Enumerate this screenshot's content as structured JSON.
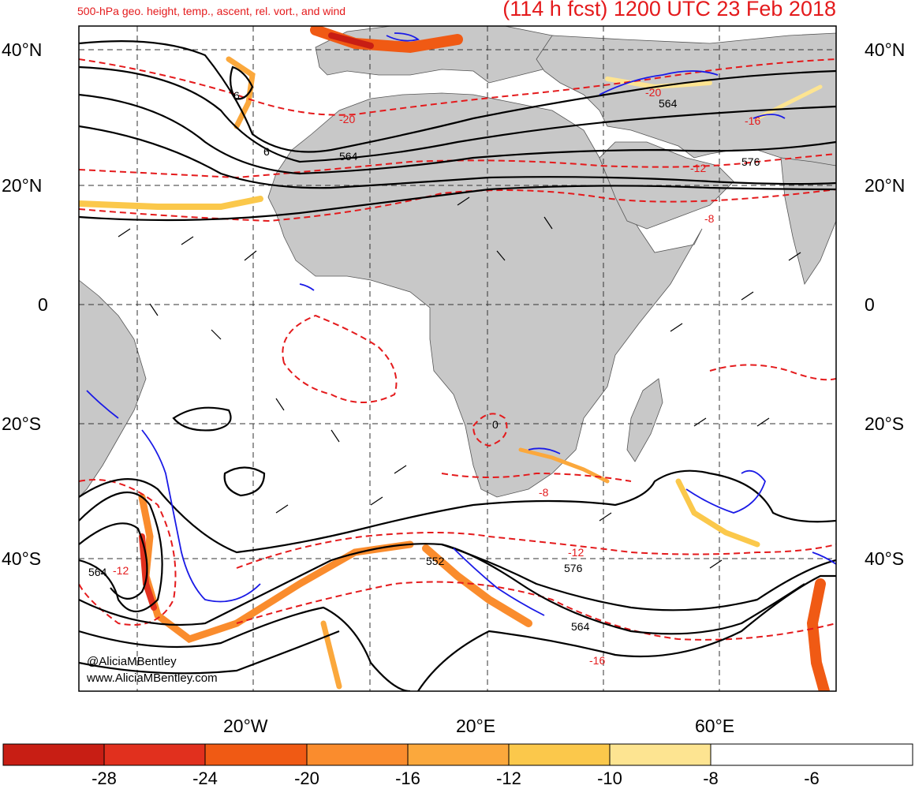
{
  "header": {
    "product": "500-hPa geo. height, temp., ascent, rel. vort., and wind",
    "forecast": "(114 h fcst) 1200 UTC 23 Feb 2018"
  },
  "axes": {
    "lat_labels": [
      "40°N",
      "20°N",
      "0",
      "20°S",
      "40°S"
    ],
    "lon_labels": [
      "20°W",
      "20°E",
      "60°E"
    ]
  },
  "contour_labels": {
    "height": [
      "564",
      "564",
      "576",
      "564",
      "552",
      "576",
      "564",
      "6",
      "6"
    ],
    "temperature": [
      "-20",
      "-8",
      "-12",
      "-8",
      "-12",
      "-12",
      "-16",
      "-20",
      "-16",
      "0"
    ]
  },
  "colorbar": {
    "colors": [
      "#c81e14",
      "#e1301e",
      "#f05a14",
      "#fa8c2d",
      "#fba83c",
      "#fbc84b",
      "#fde491",
      "#ffffff"
    ],
    "labels": [
      "-28",
      "-24",
      "-20",
      "-16",
      "-12",
      "-10",
      "-8",
      "-6"
    ]
  },
  "colors": {
    "land": "#c8c8c8",
    "ocean": "#ffffff",
    "height_contour": "#000000",
    "temp_contour": "#e41a1c",
    "vorticity_contour": "#1a1ae6",
    "title": "#e41a1c"
  },
  "credits": {
    "handle": "@AliciaMBentley",
    "website": "www.AliciaMBentley.com"
  }
}
